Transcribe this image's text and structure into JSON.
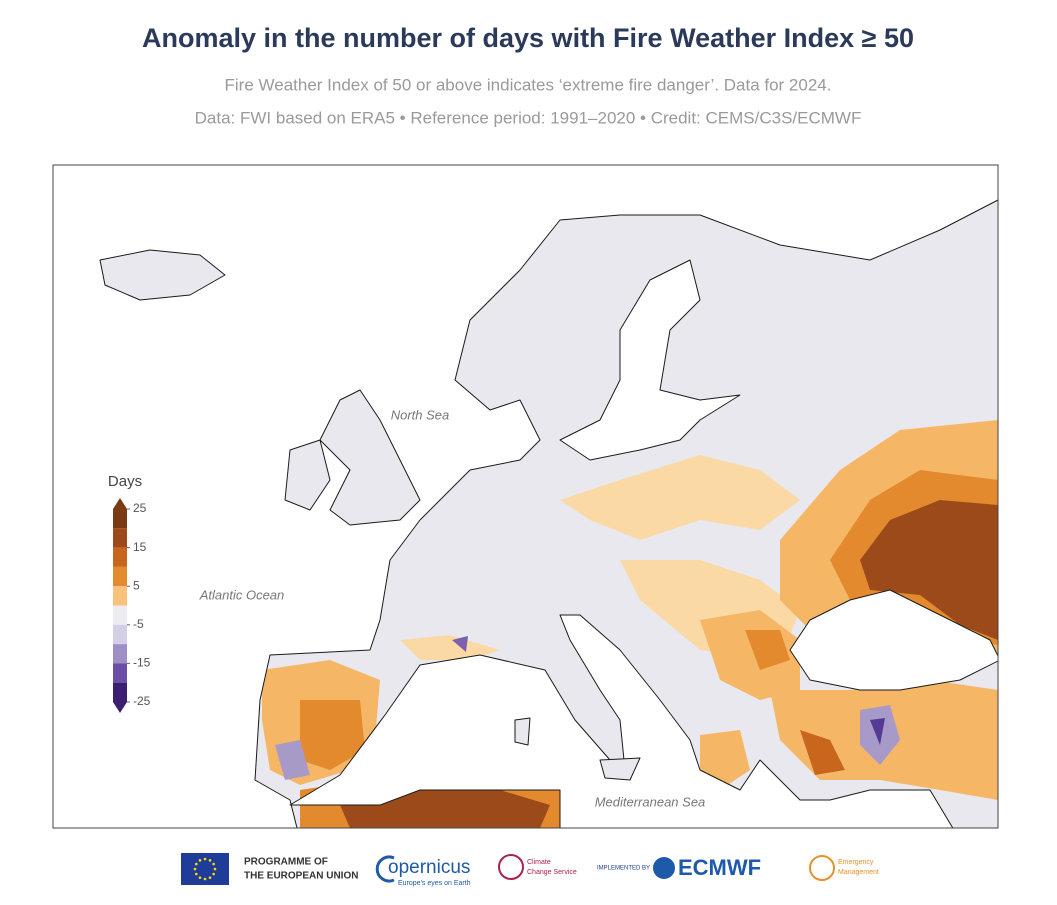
{
  "header": {
    "title": "Anomaly in the number of days with Fire Weather Index ≥ 50",
    "subtitle": "Fire Weather Index of 50 or above indicates ‘extreme fire danger’. Data for 2024.",
    "source": "Data: FWI based on ERA5 • Reference period: 1991–2020 • Credit: CEMS/C3S/ECMWF"
  },
  "map": {
    "labels": [
      "North Sea",
      "Atlantic Ocean",
      "Mediterranean Sea"
    ],
    "legend": {
      "title": "Days",
      "ticks": [
        25,
        15,
        5,
        -5,
        -15,
        -25
      ],
      "bounds": [
        25,
        20,
        15,
        10,
        5,
        0,
        -5,
        -10,
        -15,
        -20,
        -25
      ],
      "colors": [
        "#7a3a14",
        "#9c4a1a",
        "#c8661e",
        "#e48a2e",
        "#f8c27d",
        "#ececf1",
        "#d2cfe6",
        "#9e90c6",
        "#6a4ea6",
        "#3a1f72"
      ]
    }
  },
  "footer": {
    "logos": [
      "PROGRAMME OF",
      "THE EUROPEAN UNION",
      "opernicus",
      "Europe's eyes on Earth",
      "Climate",
      "Change Service",
      "IMPLEMENTED BY",
      "ECMWF",
      "Emergency",
      "Management"
    ]
  }
}
